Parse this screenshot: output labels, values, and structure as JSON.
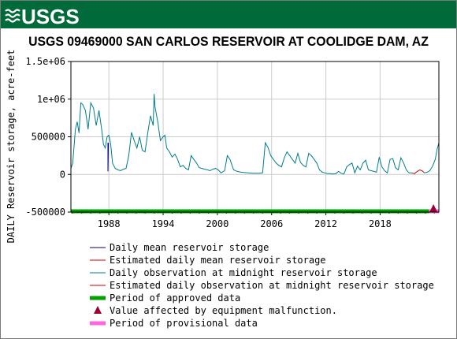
{
  "header": {
    "logo_text": "USGS"
  },
  "chart_data": {
    "type": "line",
    "title": "USGS 09469000 SAN CARLOS RESERVOIR AT COOLIDGE DAM, AZ",
    "xlabel": "",
    "ylabel": "DAILY Reservoir storage, acre-feet",
    "xlim": [
      1983.8,
      2024.5
    ],
    "ylim": [
      -500000,
      1500000
    ],
    "x_ticks": [
      "1988",
      "1994",
      "2000",
      "2006",
      "2012",
      "2018"
    ],
    "x_tick_values": [
      1988,
      1994,
      2000,
      2006,
      2012,
      2018
    ],
    "y_ticks": [
      "1.5e+06",
      "1e+06",
      "500000",
      "0",
      "-500000"
    ],
    "y_tick_values": [
      1500000,
      1000000,
      500000,
      0,
      -500000
    ],
    "grid": true,
    "legend_position": "bottom",
    "series": [
      {
        "name": "Daily mean reservoir storage",
        "color": "#000080",
        "x": [
          1987.9,
          1987.9,
          1987.95
        ],
        "y": [
          420000,
          40000,
          420000
        ]
      },
      {
        "name": "Estimated daily mean reservoir storage",
        "color": "#cc0000",
        "x": [],
        "y": []
      },
      {
        "name": "Daily observation at midnight reservoir storage",
        "color": "#007c8c",
        "x": [
          1983.8,
          1984.0,
          1984.3,
          1984.5,
          1984.7,
          1984.9,
          1985.1,
          1985.4,
          1985.7,
          1986.0,
          1986.3,
          1986.6,
          1986.9,
          1987.2,
          1987.4,
          1987.6,
          1987.8,
          1988.0,
          1988.2,
          1988.4,
          1988.7,
          1989.0,
          1989.3,
          1989.6,
          1989.9,
          1990.2,
          1990.5,
          1990.8,
          1991.1,
          1991.4,
          1991.7,
          1992.0,
          1992.3,
          1992.6,
          1992.9,
          1993.0,
          1993.1,
          1993.4,
          1993.7,
          1994.0,
          1994.2,
          1994.4,
          1994.7,
          1995.0,
          1995.3,
          1995.6,
          1995.9,
          1996.2,
          1996.5,
          1996.8,
          1997.1,
          1997.4,
          1997.7,
          1998.0,
          1998.3,
          1998.6,
          1998.9,
          1999.2,
          1999.5,
          1999.8,
          2000.1,
          2000.4,
          2000.8,
          2001.1,
          2001.4,
          2001.8,
          2002.2,
          2002.6,
          2003.0,
          2003.4,
          2003.8,
          2004.2,
          2004.6,
          2005.0,
          2005.3,
          2005.6,
          2005.9,
          2006.2,
          2006.5,
          2006.8,
          2007.1,
          2007.4,
          2007.7,
          2008.0,
          2008.3,
          2008.6,
          2008.9,
          2009.2,
          2009.5,
          2009.8,
          2010.1,
          2010.4,
          2010.7,
          2011.0,
          2011.3,
          2011.6,
          2011.9,
          2012.2,
          2012.5,
          2012.8,
          2013.1,
          2013.4,
          2013.7,
          2014.0,
          2014.3,
          2014.6,
          2014.9,
          2015.2,
          2015.5,
          2015.8,
          2016.1,
          2016.4,
          2016.7,
          2017.0,
          2017.3,
          2017.6,
          2017.9,
          2018.2,
          2018.5,
          2018.8,
          2019.1,
          2019.4,
          2019.7,
          2020.0,
          2020.3,
          2020.6,
          2020.9,
          2021.2,
          2021.5
        ],
        "y": [
          80000,
          150000,
          600000,
          700000,
          550000,
          950000,
          930000,
          850000,
          600000,
          950000,
          880000,
          650000,
          850000,
          600000,
          400000,
          350000,
          500000,
          520000,
          400000,
          150000,
          80000,
          60000,
          50000,
          70000,
          80000,
          250000,
          560000,
          450000,
          350000,
          500000,
          320000,
          300000,
          550000,
          780000,
          650000,
          1070000,
          900000,
          700000,
          450000,
          500000,
          520000,
          350000,
          300000,
          230000,
          270000,
          200000,
          100000,
          120000,
          80000,
          60000,
          250000,
          200000,
          150000,
          90000,
          80000,
          70000,
          60000,
          50000,
          70000,
          80000,
          60000,
          20000,
          50000,
          250000,
          200000,
          60000,
          40000,
          30000,
          25000,
          20000,
          15000,
          15000,
          15000,
          20000,
          420000,
          360000,
          250000,
          200000,
          150000,
          120000,
          100000,
          220000,
          300000,
          250000,
          200000,
          150000,
          280000,
          160000,
          120000,
          100000,
          280000,
          250000,
          200000,
          150000,
          60000,
          30000,
          20000,
          10000,
          10000,
          5000,
          10000,
          40000,
          15000,
          5000,
          100000,
          130000,
          150000,
          20000,
          110000,
          60000,
          150000,
          190000,
          60000,
          50000,
          40000,
          30000,
          230000,
          100000,
          50000,
          20000,
          200000,
          210000,
          90000,
          60000,
          220000,
          150000,
          60000,
          20000,
          20000
        ]
      },
      {
        "name": "Estimated daily observation at midnight reservoir storage",
        "color": "#cc0000",
        "x": [
          2021.5,
          2021.8,
          2022.1,
          2022.4,
          2022.7,
          2022.9
        ],
        "y": [
          20000,
          10000,
          40000,
          60000,
          45000,
          20000
        ]
      },
      {
        "name": "Daily observation at midnight reservoir storage",
        "color": "#007c8c",
        "x": [
          2022.9,
          2023.2,
          2023.5,
          2023.8,
          2024.1,
          2024.3,
          2024.5
        ],
        "y": [
          20000,
          30000,
          50000,
          110000,
          200000,
          330000,
          420000
        ]
      }
    ],
    "approved_period": {
      "x": [
        1983.8,
        2023.4
      ],
      "color": "#00a000"
    },
    "provisional_period": {
      "x": [
        2023.4,
        2024.5
      ],
      "color": "#ff66dd"
    },
    "equipment_malfunction_marker": {
      "x": 2023.9,
      "color": "#990033"
    },
    "legend": [
      {
        "label": "Daily mean reservoir storage",
        "swatch": "line",
        "color": "#000080"
      },
      {
        "label": "Estimated daily mean reservoir storage",
        "swatch": "line",
        "color": "#cc0000"
      },
      {
        "label": "Daily observation at midnight reservoir storage",
        "swatch": "line",
        "color": "#007c8c"
      },
      {
        "label": "Estimated daily observation at midnight reservoir storage",
        "swatch": "line",
        "color": "#cc0000"
      },
      {
        "label": "Period of approved data",
        "swatch": "thick",
        "color": "#00a000"
      },
      {
        "label": "Value affected by equipment malfunction.",
        "swatch": "marker",
        "color": "#990033"
      },
      {
        "label": "Period of provisional data",
        "swatch": "thick",
        "color": "#ff66dd"
      }
    ]
  }
}
